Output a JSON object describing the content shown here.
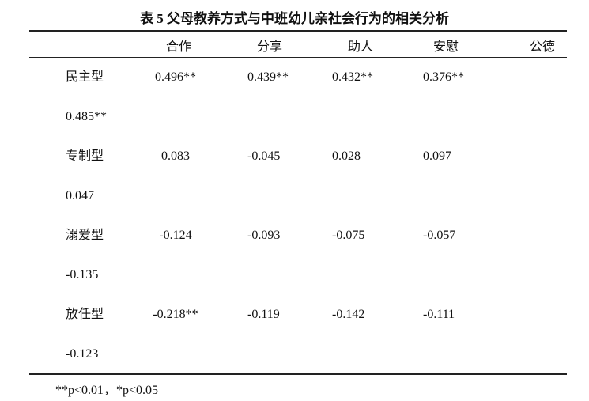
{
  "title": "表 5 父母教养方式与中班幼儿亲社会行为的相关分析",
  "table": {
    "header": [
      "合作",
      "分享",
      "助人",
      "安慰",
      "公德"
    ],
    "rows": [
      {
        "label": "民主型",
        "values": [
          "0.496**",
          "0.439**",
          "0.432**",
          "0.376**",
          "0.485**"
        ]
      },
      {
        "label": "专制型",
        "values": [
          "0.083",
          "-0.045",
          "0.028",
          "0.097",
          "0.047"
        ]
      },
      {
        "label": "溺爱型",
        "values": [
          "-0.124",
          "-0.093",
          "-0.075",
          "-0.057",
          "-0.135"
        ]
      },
      {
        "label": "放任型",
        "values": [
          "-0.218**",
          "-0.119",
          "-0.142",
          "-0.111",
          "-0.123"
        ]
      }
    ]
  },
  "footnote": "**p<0.01，*p<0.05"
}
